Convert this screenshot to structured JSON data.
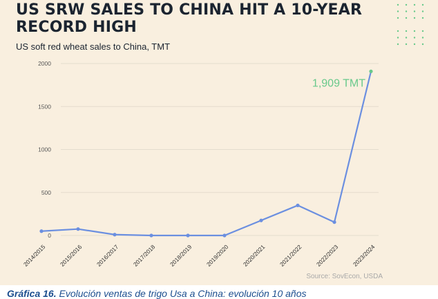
{
  "header": {
    "title": "US SRW SALES TO CHINA HIT A 10-YEAR\nRECORD HIGH",
    "subtitle": "US soft red wheat sales to China, TMT"
  },
  "chart_data": {
    "type": "line",
    "title": "US SRW SALES TO CHINA HIT A 10-YEAR RECORD HIGH",
    "subtitle": "US soft red wheat sales to China, TMT",
    "categories": [
      "2014/2015",
      "2015/2016",
      "2016/2017",
      "2017/2018",
      "2018/2019",
      "2019/2020",
      "2020/2021",
      "2021/2022",
      "2022/2023",
      "2023/2024"
    ],
    "series": [
      {
        "values": [
          50,
          75,
          10,
          0,
          0,
          0,
          175,
          350,
          155,
          1909
        ]
      }
    ],
    "ylim": [
      0,
      2000
    ],
    "yticks": [
      0,
      500,
      1000,
      1500,
      2000
    ],
    "grid": true,
    "annotation": {
      "text": "1,909 TMT",
      "category_index": 9,
      "value": 1909
    },
    "line_color": "#6b8fe0",
    "highlight_color": "#68c98b",
    "tick_label_color": "#555555",
    "grid_color": "#e4dccd"
  },
  "footer": {
    "source": "Source: SovEcon, USDA"
  },
  "caption": {
    "label": "Gráfica 16.",
    "text": " Evolución ventas de trigo Usa a China: evolución 10 años"
  },
  "colors": {
    "background": "#f9efdf",
    "title": "#1b2430",
    "caption": "#1d4f8f",
    "dots": "#68c98b"
  }
}
